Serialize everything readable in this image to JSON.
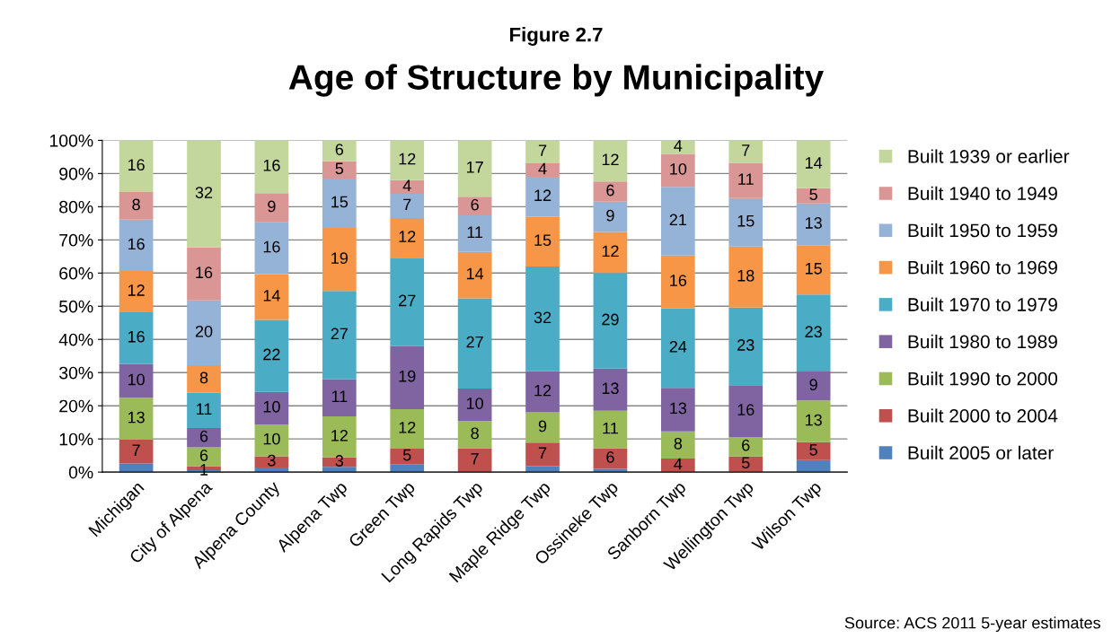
{
  "chart_data": {
    "type": "bar",
    "stacked": true,
    "title": "Age of Structure by Municipality",
    "subtitle": "Figure 2.7",
    "categories": [
      "Michigan",
      "City of Alpena",
      "Alpena County",
      "Alpena Twp",
      "Green Twp",
      "Long Rapids Twp",
      "Maple Ridge Twp",
      "Ossineke Twp",
      "Sanborn Twp",
      "Wellington Twp",
      "Wilson Twp"
    ],
    "series": [
      {
        "name": "Built 2005 or later",
        "color": "#4f81bd",
        "values": [
          2.6,
          0.6,
          1.4,
          1.6,
          2.4,
          null,
          1.8,
          1.0,
          null,
          null,
          3.6
        ],
        "value_labels": [
          null,
          "1",
          null,
          null,
          null,
          null,
          null,
          null,
          null,
          null,
          null
        ]
      },
      {
        "name": "Built 2000 to 2004",
        "color": "#c0504d",
        "values": [
          7.2,
          1.2,
          3.4,
          2.8,
          4.7,
          7.2,
          7.1,
          6.2,
          4.1,
          4.8,
          5.4
        ],
        "value_labels": [
          "7",
          null,
          "3",
          "3",
          "5",
          "7",
          "7",
          "6",
          "4",
          "5",
          "5"
        ]
      },
      {
        "name": "Built 1990 to 2000",
        "color": "#9bbb59",
        "values": [
          12.6,
          5.7,
          9.6,
          12.4,
          11.9,
          8.2,
          9.1,
          11.3,
          8.2,
          5.8,
          12.6
        ],
        "value_labels": [
          "13",
          "6",
          "10",
          "12",
          "12",
          "8",
          "9",
          "11",
          "8",
          "6",
          "13"
        ]
      },
      {
        "name": "Built 1980 to 1989",
        "color": "#8064a2",
        "values": [
          10.2,
          5.8,
          9.8,
          11.2,
          19.0,
          9.8,
          12.4,
          12.7,
          13.1,
          15.6,
          8.7
        ],
        "value_labels": [
          "10",
          "6",
          "10",
          "11",
          "19",
          "10",
          "12",
          "13",
          "13",
          "16",
          "9"
        ]
      },
      {
        "name": "Built 1970 to 1979",
        "color": "#4bacc6",
        "values": [
          15.6,
          10.6,
          21.7,
          26.6,
          26.6,
          27.2,
          31.6,
          28.8,
          24.0,
          23.4,
          23.2
        ],
        "value_labels": [
          "16",
          "11",
          "22",
          "27",
          "27",
          "27",
          "32",
          "29",
          "24",
          "23",
          "23"
        ]
      },
      {
        "name": "Built 1960 to 1969",
        "color": "#f79646",
        "values": [
          12.4,
          8.3,
          13.8,
          19.0,
          12.0,
          14.0,
          15.0,
          12.4,
          15.9,
          18.4,
          14.9
        ],
        "value_labels": [
          "12",
          "8",
          "14",
          "19",
          "12",
          "14",
          "15",
          "12",
          "16",
          "18",
          "15"
        ]
      },
      {
        "name": "Built 1950 to 1959",
        "color": "#95b3d7",
        "values": [
          15.5,
          19.6,
          15.6,
          14.9,
          7.3,
          11.0,
          12.0,
          9.1,
          20.7,
          14.6,
          12.6
        ],
        "value_labels": [
          "16",
          "20",
          "16",
          "15",
          "7",
          "11",
          "12",
          "9",
          "21",
          "15",
          "13"
        ]
      },
      {
        "name": "Built 1940 to 1949",
        "color": "#d99694",
        "values": [
          8.3,
          15.9,
          8.8,
          5.2,
          4.1,
          5.6,
          4.1,
          6.1,
          9.9,
          10.6,
          4.6
        ],
        "value_labels": [
          "8",
          "16",
          "9",
          "5",
          "4",
          "6",
          "4",
          "6",
          "10",
          "11",
          "5"
        ]
      },
      {
        "name": "Built 1939 or earlier",
        "color": "#c3d69b",
        "values": [
          15.6,
          32.3,
          15.9,
          6.3,
          12.0,
          17.0,
          6.9,
          12.4,
          4.1,
          6.8,
          14.4
        ],
        "value_labels": [
          "16",
          "32",
          "16",
          "6",
          "12",
          "17",
          "7",
          "12",
          "4",
          "7",
          "14"
        ]
      }
    ],
    "ylim": [
      0,
      100
    ],
    "yticks": [
      {
        "value": 0,
        "label": "0%"
      },
      {
        "value": 10,
        "label": "10%"
      },
      {
        "value": 20,
        "label": "20%"
      },
      {
        "value": 30,
        "label": "30%"
      },
      {
        "value": 40,
        "label": "40%"
      },
      {
        "value": 50,
        "label": "50%"
      },
      {
        "value": 60,
        "label": "60%"
      },
      {
        "value": 70,
        "label": "70%"
      },
      {
        "value": 80,
        "label": "80%"
      },
      {
        "value": 90,
        "label": "90%"
      },
      {
        "value": 100,
        "label": "100%"
      }
    ],
    "grid": "y",
    "legend": "right",
    "annotations": [
      "Source: ACS 2011 5-year estimates"
    ]
  }
}
